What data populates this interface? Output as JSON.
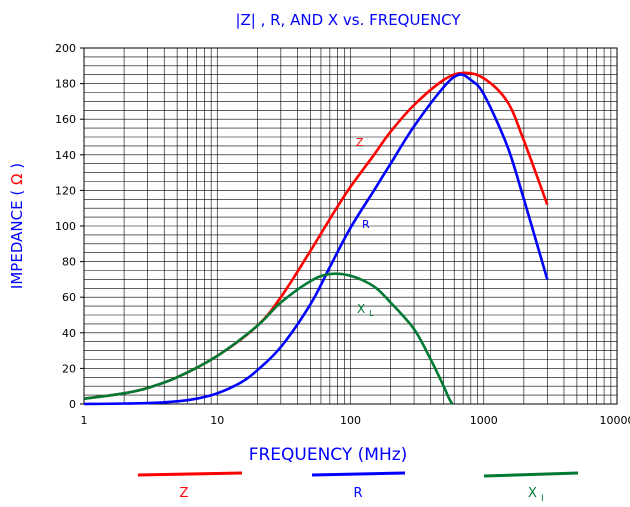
{
  "chart_data": {
    "type": "line",
    "title": "|Z| , R, AND X vs. FREQUENCY",
    "xlabel": "FREQUENCY (MHz)",
    "ylabel_prefix": "IMPEDANCE (",
    "ylabel_symbol": "Ω",
    "ylabel_suffix": ")",
    "x_scale": "log",
    "xlim": [
      1,
      10000
    ],
    "ylim": [
      0,
      200
    ],
    "x_ticks": [
      1,
      10,
      100,
      1000,
      10000
    ],
    "y_ticks": [
      0,
      20,
      40,
      60,
      80,
      100,
      120,
      140,
      160,
      180,
      200
    ],
    "grid": true,
    "legend_position": "bottom",
    "series": [
      {
        "name": "Z",
        "label": "Z",
        "color": "#ff0000",
        "points": [
          [
            1,
            3
          ],
          [
            2,
            6
          ],
          [
            3,
            9
          ],
          [
            5,
            15
          ],
          [
            10,
            27
          ],
          [
            20,
            44
          ],
          [
            30,
            60
          ],
          [
            50,
            86
          ],
          [
            70,
            104
          ],
          [
            100,
            122
          ],
          [
            150,
            140
          ],
          [
            200,
            153
          ],
          [
            300,
            168
          ],
          [
            500,
            182
          ],
          [
            700,
            186
          ],
          [
            1000,
            183
          ],
          [
            1500,
            170
          ],
          [
            2000,
            148
          ],
          [
            3000,
            112
          ]
        ]
      },
      {
        "name": "R",
        "label": "R",
        "color": "#0000ff",
        "points": [
          [
            1,
            0
          ],
          [
            3,
            0.5
          ],
          [
            5,
            1.5
          ],
          [
            7,
            3
          ],
          [
            10,
            6
          ],
          [
            15,
            12
          ],
          [
            20,
            19
          ],
          [
            30,
            32
          ],
          [
            50,
            56
          ],
          [
            70,
            77
          ],
          [
            100,
            99
          ],
          [
            150,
            120
          ],
          [
            200,
            135
          ],
          [
            300,
            156
          ],
          [
            500,
            178
          ],
          [
            650,
            185
          ],
          [
            800,
            182
          ],
          [
            1000,
            174
          ],
          [
            1500,
            145
          ],
          [
            2000,
            115
          ],
          [
            3000,
            70
          ]
        ]
      },
      {
        "name": "XL",
        "label_main": "X",
        "label_sub": "L",
        "legend_sub": "I",
        "color": "#007a33",
        "points": [
          [
            1,
            3
          ],
          [
            2,
            6
          ],
          [
            3,
            9
          ],
          [
            5,
            15
          ],
          [
            10,
            27
          ],
          [
            20,
            44
          ],
          [
            30,
            57
          ],
          [
            50,
            69
          ],
          [
            70,
            73
          ],
          [
            100,
            72
          ],
          [
            150,
            66
          ],
          [
            200,
            57
          ],
          [
            300,
            42
          ],
          [
            400,
            25
          ],
          [
            500,
            10
          ],
          [
            550,
            3
          ],
          [
            580,
            0
          ]
        ]
      }
    ]
  }
}
